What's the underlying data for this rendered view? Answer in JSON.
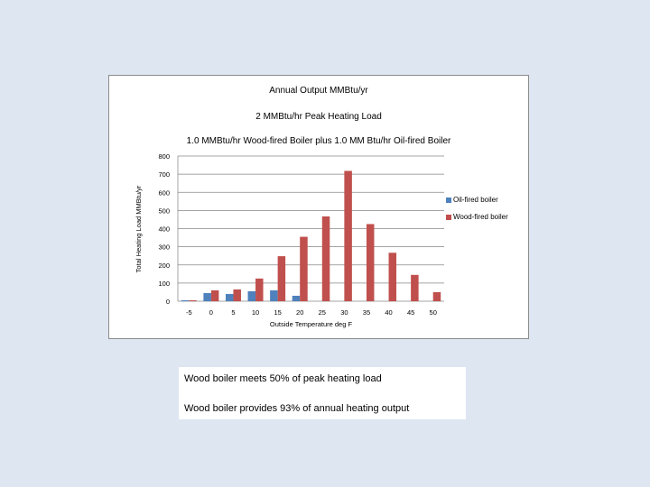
{
  "chart_data": {
    "type": "bar",
    "titles": [
      "Annual Output  MMBtu/yr",
      "2 MMBtu/hr Peak Heating Load",
      "1.0 MMBtu/hr Wood-fired Boiler plus 1.0 MM Btu/hr Oil-fired Boiler"
    ],
    "xlabel": "Outside Temperature deg F",
    "ylabel": "Total Heating Load MMBtu/yr",
    "categories": [
      "-5",
      "0",
      "5",
      "10",
      "15",
      "20",
      "25",
      "30",
      "35",
      "40",
      "45",
      "50"
    ],
    "series": [
      {
        "name": "Oil-fired boiler",
        "color": "#4f81bd",
        "values": [
          5,
          45,
          40,
          55,
          60,
          30,
          0,
          0,
          0,
          0,
          0,
          0
        ]
      },
      {
        "name": "Wood-fired boiler",
        "color": "#c0504d",
        "values": [
          5,
          60,
          65,
          125,
          248,
          355,
          467,
          718,
          425,
          267,
          145,
          50
        ]
      }
    ],
    "ylim": [
      0,
      800
    ],
    "yticks": [
      0,
      100,
      200,
      300,
      400,
      500,
      600,
      700,
      800
    ],
    "grid": true,
    "legend_position": "right"
  },
  "notes": {
    "line1": "Wood boiler meets 50% of peak heating load",
    "line2": "Wood boiler provides 93% of annual heating output"
  }
}
